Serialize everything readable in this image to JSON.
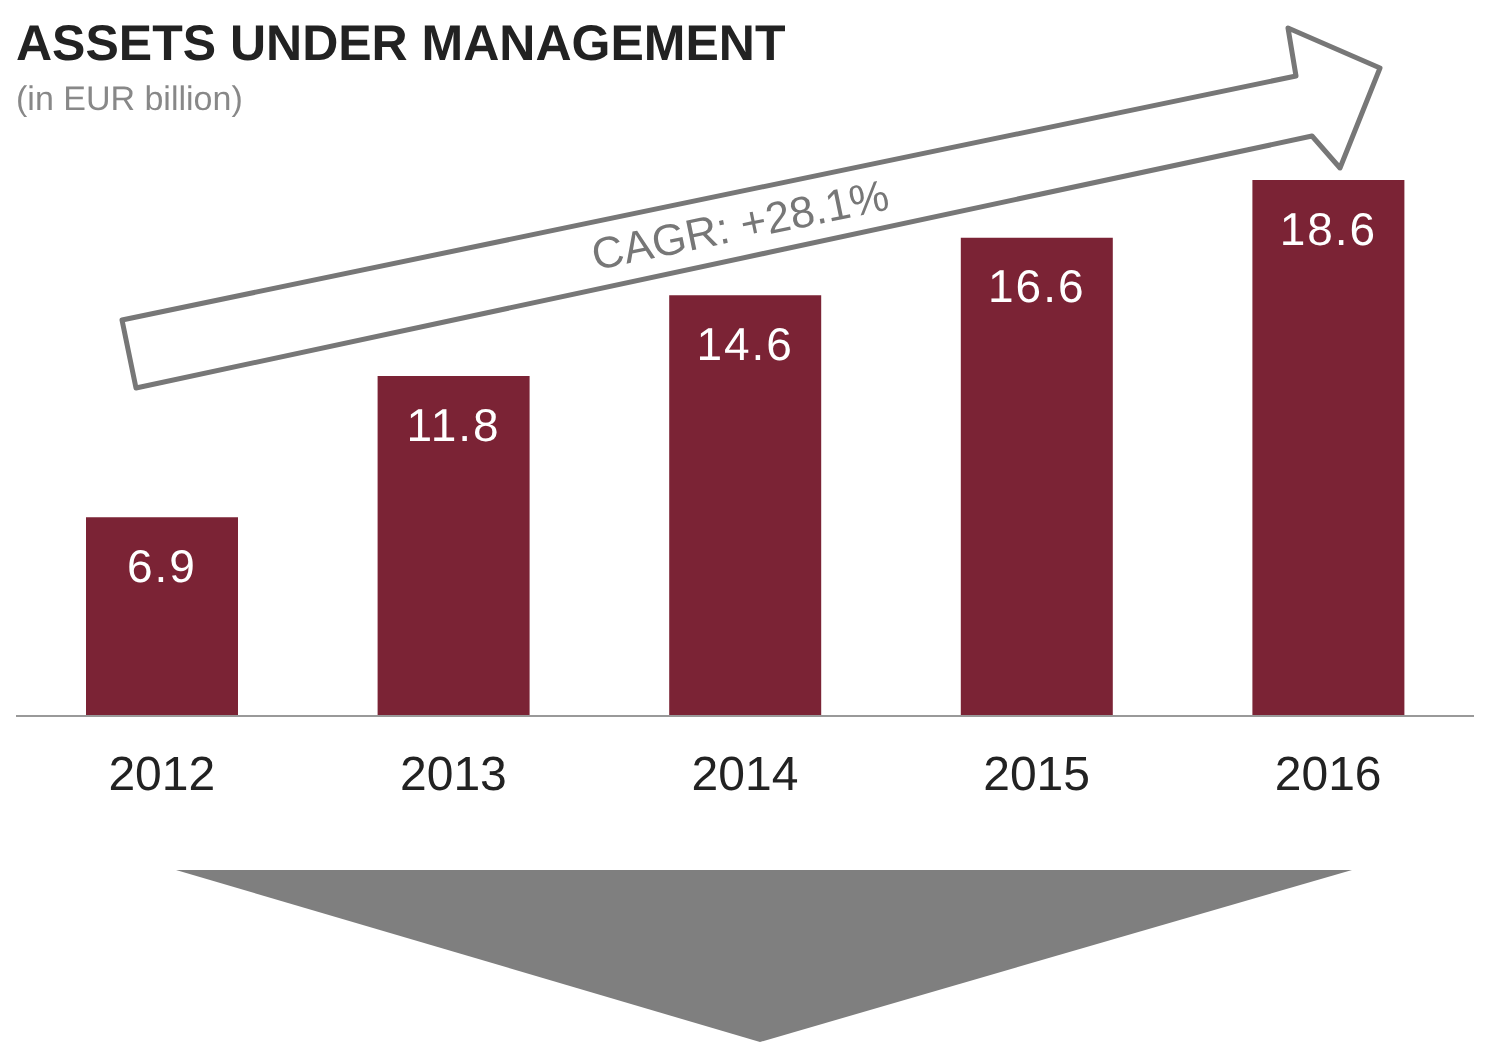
{
  "chart_data": {
    "type": "bar",
    "title": "ASSETS UNDER MANAGEMENT",
    "subtitle": "(in EUR billion)",
    "categories": [
      "2012",
      "2013",
      "2014",
      "2015",
      "2016"
    ],
    "values": [
      6.9,
      11.8,
      14.6,
      16.6,
      18.6
    ],
    "color": "#7b2335",
    "data_labels": true,
    "tick_labels": "x",
    "annotations": [
      "CAGR: +28.1%"
    ]
  }
}
